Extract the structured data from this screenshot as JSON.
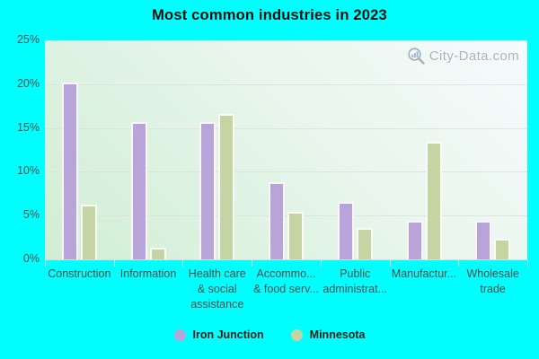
{
  "page": {
    "background_color": "#00ffff"
  },
  "title": "Most common industries in 2023",
  "watermark": {
    "text": "City-Data.com",
    "icon": "magnifier-bars-icon"
  },
  "chart_data": {
    "type": "bar",
    "title": "Most common industries in 2023",
    "categories": [
      "Construction",
      "Information",
      "Health care & social assistance",
      "Accommodation & food services",
      "Public administration",
      "Manufacturing",
      "Wholesale trade"
    ],
    "display_labels": [
      [
        "Construction"
      ],
      [
        "Information"
      ],
      [
        "Health care",
        "& social",
        "assistance"
      ],
      [
        "Accommo...",
        "& food serv..."
      ],
      [
        "Public",
        "administrat..."
      ],
      [
        "Manufactur..."
      ],
      [
        "Wholesale",
        "trade"
      ]
    ],
    "series": [
      {
        "name": "Iron Junction",
        "color": "#b8a4d9",
        "values": [
          20.2,
          15.7,
          15.7,
          8.8,
          6.6,
          4.4,
          4.4
        ]
      },
      {
        "name": "Minnesota",
        "color": "#c4d5a3",
        "values": [
          6.3,
          1.3,
          16.6,
          5.4,
          3.6,
          13.4,
          2.4
        ]
      }
    ],
    "ylim": [
      0,
      25
    ],
    "yticks": [
      "25%",
      "20%",
      "15%",
      "10%",
      "5%",
      "0%"
    ],
    "xlabel": "",
    "ylabel": "",
    "grid": true,
    "legend_position": "bottom"
  }
}
